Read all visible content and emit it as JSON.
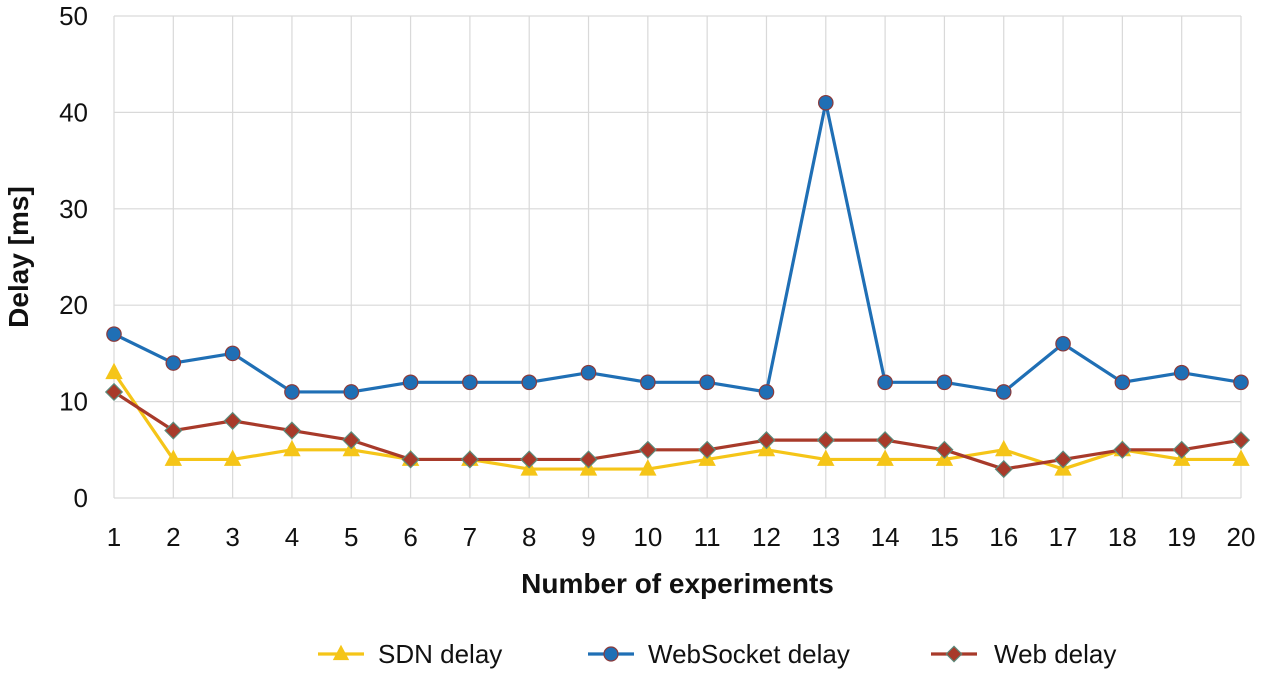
{
  "chart_data": {
    "type": "line",
    "title": "",
    "xlabel": "Number of experiments",
    "ylabel": "Delay [ms]",
    "x": [
      1,
      2,
      3,
      4,
      5,
      6,
      7,
      8,
      9,
      10,
      11,
      12,
      13,
      14,
      15,
      16,
      17,
      18,
      19,
      20
    ],
    "x_tick_labels": [
      "1",
      "2",
      "3",
      "4",
      "5",
      "6",
      "7",
      "8",
      "9",
      "10",
      "11",
      "12",
      "13",
      "14",
      "15",
      "16",
      "17",
      "18",
      "19",
      "20"
    ],
    "ylim": [
      0,
      50
    ],
    "y_ticks": [
      0,
      10,
      20,
      30,
      40,
      50
    ],
    "y_tick_labels": [
      "0",
      "10",
      "20",
      "30",
      "40",
      "50"
    ],
    "grid": true,
    "legend_position": "bottom",
    "series": [
      {
        "name": "SDN delay",
        "color": "#f5c518",
        "marker": "triangle",
        "values": [
          13,
          4,
          4,
          5,
          5,
          4,
          4,
          3,
          3,
          3,
          4,
          5,
          4,
          4,
          4,
          5,
          3,
          5,
          4,
          4
        ]
      },
      {
        "name": "WebSocket delay",
        "color": "#1f6fb5",
        "marker": "circle",
        "values": [
          17,
          14,
          15,
          11,
          11,
          12,
          12,
          12,
          13,
          12,
          12,
          11,
          41,
          12,
          12,
          11,
          16,
          12,
          13,
          12
        ]
      },
      {
        "name": "Web delay",
        "color": "#a83a2a",
        "marker": "diamond",
        "values": [
          11,
          7,
          8,
          7,
          6,
          4,
          4,
          4,
          4,
          5,
          5,
          6,
          6,
          6,
          5,
          3,
          4,
          5,
          5,
          6
        ]
      }
    ]
  }
}
